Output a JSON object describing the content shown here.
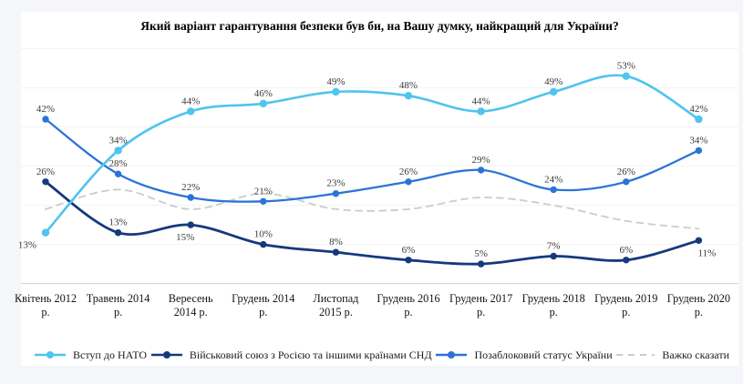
{
  "page": {
    "background": "#f4f6f9",
    "card_background": "#ffffff"
  },
  "chart_data": {
    "type": "line",
    "title": "Який варіант гарантування безпеки був би, на Вашу думку, найкращий для України?",
    "categories": [
      "Квітень 2012\nр.",
      "Травень 2014\nр.",
      "Вересень\n2014 р.",
      "Грудень 2014\nр.",
      "Листопад\n2015 р.",
      "Грудень 2016\nр.",
      "Грудень 2017\nр.",
      "Грудень 2018\nр.",
      "Грудень 2019\nр.",
      "Грудень 2020\nр."
    ],
    "series": [
      {
        "id": "nato",
        "name": "Вступ до НАТО",
        "color": "#4fc4ee",
        "values": [
          13,
          34,
          44,
          46,
          49,
          48,
          44,
          49,
          53,
          42
        ],
        "dashed": false,
        "markers": true,
        "show_labels": true,
        "line_width": 2.6,
        "marker_r": 4.2
      },
      {
        "id": "union-russia-cis",
        "name": "Військовий союз з Росією та іншими країнами СНД",
        "color": "#15397d",
        "values": [
          26,
          13,
          15,
          10,
          8,
          6,
          5,
          7,
          6,
          11
        ],
        "dashed": false,
        "markers": true,
        "show_labels": true,
        "line_width": 2.8,
        "marker_r": 3.7
      },
      {
        "id": "non-bloc",
        "name": "Позаблоковий статус України",
        "color": "#2b73d9",
        "values": [
          42,
          28,
          22,
          21,
          23,
          26,
          29,
          24,
          26,
          34
        ],
        "dashed": false,
        "markers": true,
        "show_labels": true,
        "line_width": 2.3,
        "marker_r": 3.7
      },
      {
        "id": "hard-to-say",
        "name": "Важко сказати",
        "color": "#cbcbcb",
        "values": [
          19,
          24,
          19,
          23,
          19,
          19,
          22,
          20,
          16,
          14
        ],
        "values_estimated": true,
        "dashed": true,
        "markers": false,
        "show_labels": false,
        "line_width": 1.8,
        "marker_r": 0
      }
    ],
    "label_format": "{v}%",
    "ylim": [
      0,
      65
    ],
    "grid": {
      "values": [
        0,
        10,
        20,
        30,
        40,
        50,
        60
      ],
      "color": "#f2f3f6",
      "axis_color": "#d8dbdf"
    },
    "legend_position": "bottom",
    "label_text_color": "#3b3b3b",
    "label_overrides": [
      {
        "series": 0,
        "point": 0,
        "dx": -20,
        "mode": "below"
      },
      {
        "series": 1,
        "point": 2,
        "dx": -6,
        "mode": "below"
      },
      {
        "series": 1,
        "point": 9,
        "dx": 9,
        "mode": "below"
      }
    ]
  }
}
